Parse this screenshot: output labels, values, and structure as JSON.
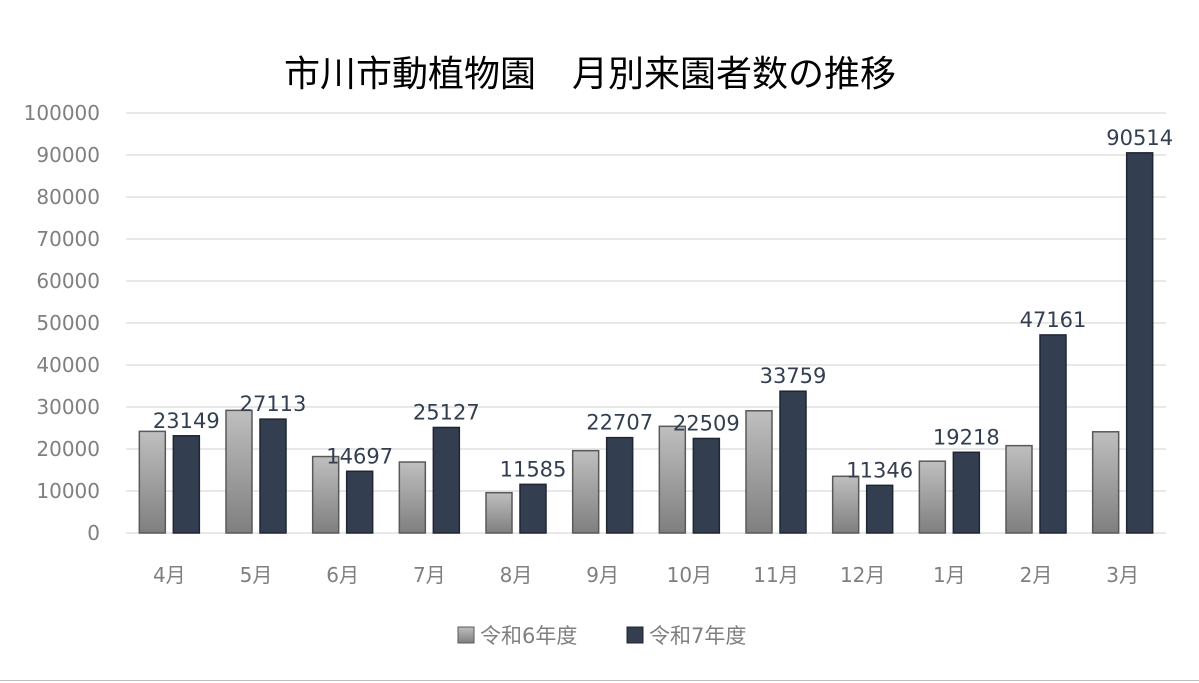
{
  "chart_data": {
    "type": "bar",
    "title": "市川市動植物園　月別来園者数の推移",
    "xlabel": "",
    "ylabel": "",
    "ylim": [
      0,
      100000
    ],
    "yticks": [
      "0",
      "10000",
      "20000",
      "30000",
      "40000",
      "50000",
      "60000",
      "70000",
      "80000",
      "90000",
      "100000"
    ],
    "categories": [
      "4月",
      "5月",
      "6月",
      "7月",
      "8月",
      "9月",
      "10月",
      "11月",
      "12月",
      "1月",
      "2月",
      "3月"
    ],
    "series": [
      {
        "name": "令和6年度",
        "values": [
          24200,
          29200,
          18200,
          16900,
          9600,
          19600,
          25400,
          29100,
          13500,
          17100,
          20800,
          24100
        ]
      },
      {
        "name": "令和7年度",
        "values": [
          23149,
          27113,
          14697,
          25127,
          11585,
          22707,
          22509,
          33759,
          11346,
          19218,
          47161,
          90514
        ],
        "data_labels": [
          "23149",
          "27113",
          "14697",
          "25127",
          "11585",
          "22707",
          "22509",
          "33759",
          "11346",
          "19218",
          "47161",
          "90514"
        ]
      }
    ],
    "grid": true,
    "legend_position": "bottom",
    "colors": {
      "series1": "#a6a6a6",
      "series2": "#333f50",
      "grid": "#d9d9d9",
      "axis_text": "#7f7f7f",
      "label_text": "#333f50"
    }
  }
}
